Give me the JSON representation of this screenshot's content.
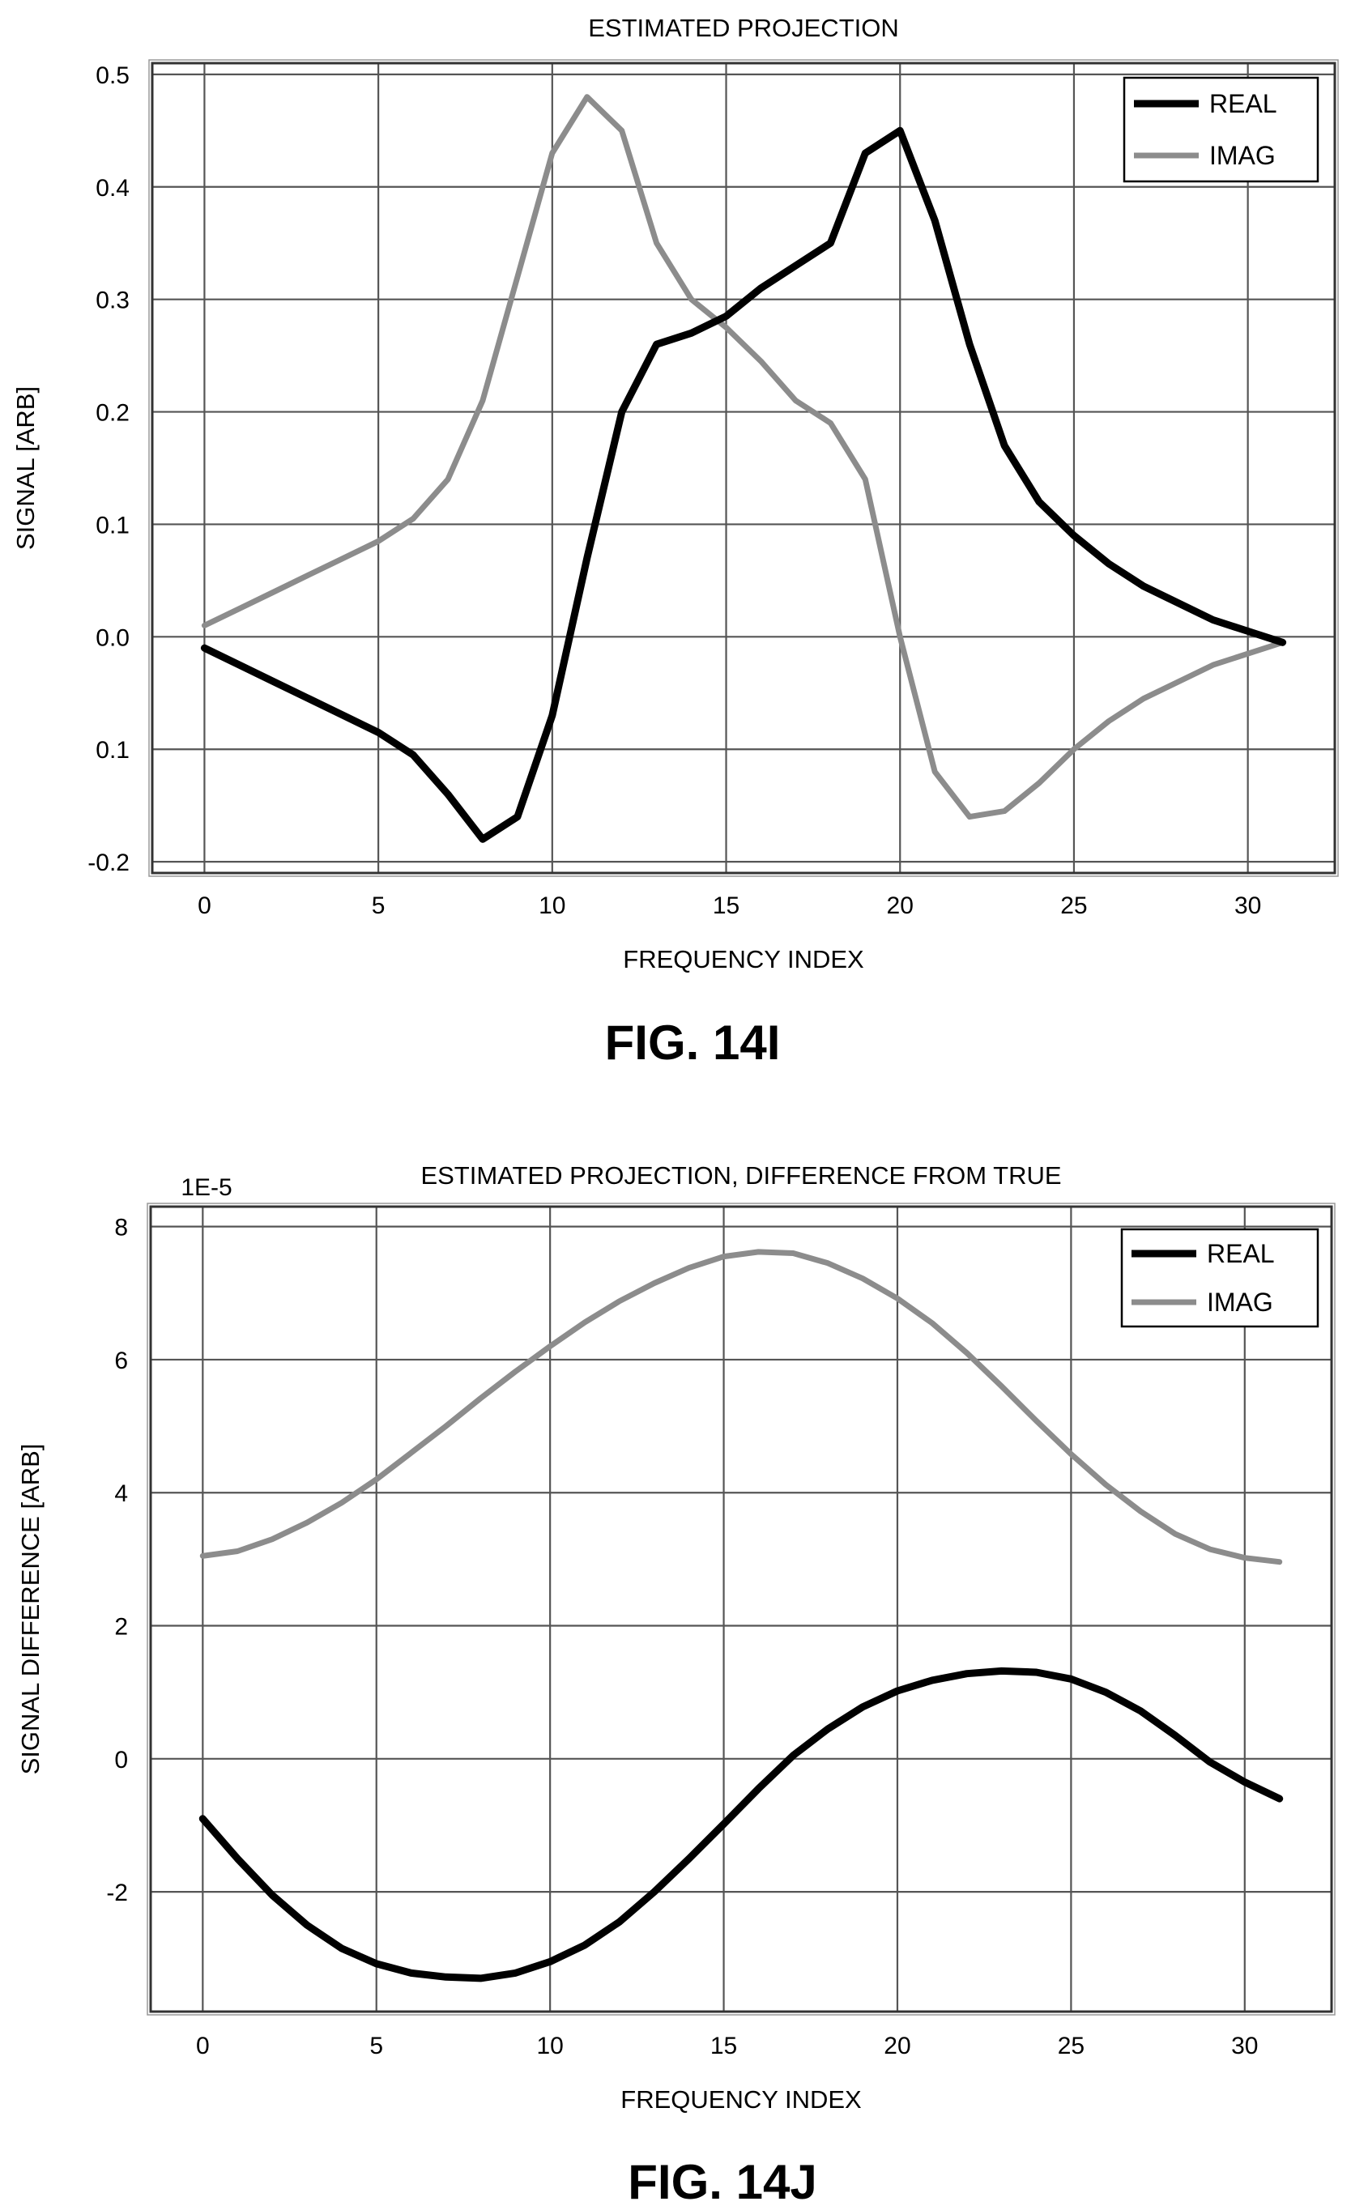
{
  "chart_data": [
    {
      "type": "line",
      "title": "ESTIMATED PROJECTION",
      "xlabel": "FREQUENCY INDEX",
      "ylabel": "SIGNAL [ARB]",
      "figure_label": "FIG. 14I",
      "xlim": [
        -1.5,
        32.5
      ],
      "ylim": [
        -0.21,
        0.51
      ],
      "x_ticks": [
        0,
        5,
        10,
        15,
        20,
        25,
        30
      ],
      "x_tick_labels": [
        "0",
        "5",
        "10",
        "15",
        "20",
        "25",
        "30"
      ],
      "y_ticks": [
        0.5,
        0.4,
        0.3,
        0.2,
        0.1,
        0.0,
        -0.1,
        -0.2
      ],
      "y_tick_labels": [
        "0.5",
        "0.4",
        "0.3",
        "0.2",
        "0.1",
        "0.0",
        "0.1",
        "-0.2"
      ],
      "grid": true,
      "legend_position": "top-right",
      "x": [
        0,
        1,
        2,
        3,
        4,
        5,
        6,
        7,
        8,
        9,
        10,
        11,
        12,
        13,
        14,
        15,
        16,
        17,
        18,
        19,
        20,
        21,
        22,
        23,
        24,
        25,
        26,
        27,
        28,
        29,
        30,
        31
      ],
      "series": [
        {
          "name": "REAL",
          "color": "#000000",
          "values": [
            -0.01,
            -0.025,
            -0.04,
            -0.055,
            -0.07,
            -0.085,
            -0.105,
            -0.14,
            -0.18,
            -0.16,
            -0.07,
            0.07,
            0.2,
            0.26,
            0.27,
            0.285,
            0.31,
            0.33,
            0.35,
            0.43,
            0.45,
            0.37,
            0.26,
            0.17,
            0.12,
            0.09,
            0.065,
            0.045,
            0.03,
            0.015,
            0.005,
            -0.005
          ]
        },
        {
          "name": "IMAG",
          "color": "#8c8c8c",
          "values": [
            0.01,
            0.025,
            0.04,
            0.055,
            0.07,
            0.085,
            0.105,
            0.14,
            0.21,
            0.32,
            0.43,
            0.48,
            0.45,
            0.35,
            0.3,
            0.275,
            0.245,
            0.21,
            0.19,
            0.14,
            0.0,
            -0.12,
            -0.16,
            -0.155,
            -0.13,
            -0.1,
            -0.075,
            -0.055,
            -0.04,
            -0.025,
            -0.015,
            -0.005
          ]
        }
      ]
    },
    {
      "type": "line",
      "title": "ESTIMATED PROJECTION, DIFFERENCE FROM TRUE",
      "xlabel": "FREQUENCY INDEX",
      "ylabel": "SIGNAL DIFFERENCE [ARB]",
      "y_scale_label": "1E-5",
      "figure_label": "FIG. 14J",
      "xlim": [
        -1.5,
        32.5
      ],
      "ylim": [
        -3.8,
        8.3
      ],
      "x_ticks": [
        0,
        5,
        10,
        15,
        20,
        25,
        30
      ],
      "x_tick_labels": [
        "0",
        "5",
        "10",
        "15",
        "20",
        "25",
        "30"
      ],
      "y_ticks": [
        8,
        6,
        4,
        2,
        0,
        -2
      ],
      "y_tick_labels": [
        "8",
        "6",
        "4",
        "2",
        "0",
        "-2"
      ],
      "grid": true,
      "legend_position": "top-right",
      "x": [
        0,
        1,
        2,
        3,
        4,
        5,
        6,
        7,
        8,
        9,
        10,
        11,
        12,
        13,
        14,
        15,
        16,
        17,
        18,
        19,
        20,
        21,
        22,
        23,
        24,
        25,
        26,
        27,
        28,
        29,
        30,
        31
      ],
      "series": [
        {
          "name": "REAL",
          "color": "#000000",
          "values": [
            -0.9,
            -1.5,
            -2.05,
            -2.5,
            -2.85,
            -3.08,
            -3.22,
            -3.28,
            -3.3,
            -3.22,
            -3.05,
            -2.8,
            -2.45,
            -2.0,
            -1.5,
            -0.98,
            -0.45,
            0.05,
            0.45,
            0.78,
            1.02,
            1.18,
            1.28,
            1.32,
            1.3,
            1.2,
            1.0,
            0.72,
            0.35,
            -0.05,
            -0.35,
            -0.6
          ]
        },
        {
          "name": "IMAG",
          "color": "#8c8c8c",
          "values": [
            3.05,
            3.12,
            3.3,
            3.55,
            3.85,
            4.2,
            4.6,
            5.0,
            5.42,
            5.82,
            6.2,
            6.56,
            6.88,
            7.15,
            7.38,
            7.55,
            7.62,
            7.6,
            7.45,
            7.22,
            6.92,
            6.55,
            6.1,
            5.6,
            5.08,
            4.58,
            4.12,
            3.72,
            3.38,
            3.15,
            3.02,
            2.96
          ]
        }
      ]
    }
  ]
}
